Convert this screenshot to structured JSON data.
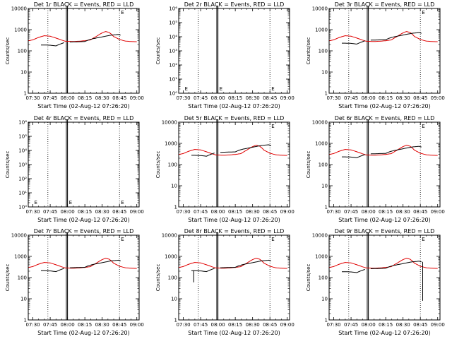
{
  "chart_data": [
    {
      "type": "line",
      "title": "Det 1r BLACK = Events, RED = LLD",
      "ylabel": "Counts/sec",
      "xlabel": "Start Time (02-Aug-12 07:26:20)",
      "yscale": "log",
      "ylim": [
        1,
        10000
      ],
      "ytick_labels": [
        "1",
        "10",
        "100",
        "1000",
        "10000"
      ],
      "x": [
        "07:30",
        "07:45",
        "08:00",
        "08:15",
        "08:30",
        "08:45",
        "09:00"
      ],
      "has_data": true,
      "black_scale": 0.45,
      "red_scale": 1.0,
      "dotted_lines": [
        "07:43",
        "08:45"
      ],
      "solid_lines": [
        "07:59",
        "08:00"
      ],
      "marker_label": "E",
      "markers": [
        "08:45"
      ],
      "black_spike": null,
      "black_dip": null
    },
    {
      "type": "line",
      "title": "Det 2r BLACK = Events, RED = LLD",
      "ylabel": "Counts/sec",
      "xlabel": "Start Time (02-Aug-12 07:26:20)",
      "yscale": "log",
      "ylim": [
        1,
        1000000
      ],
      "ytick_labels": [
        "10⁰",
        "10¹",
        "10²",
        "10³",
        "10⁴",
        "10⁵",
        "10⁶"
      ],
      "x": [
        "07:30",
        "07:45",
        "08:00",
        "08:15",
        "08:30",
        "08:45",
        "09:00"
      ],
      "has_data": false,
      "dotted_lines": [
        "07:43",
        "08:45"
      ],
      "solid_lines": [
        "07:59",
        "08:00"
      ],
      "marker_label": "E",
      "markers": [
        "07:30",
        "08:00",
        "08:45"
      ]
    },
    {
      "type": "line",
      "title": "Det 3r BLACK = Events, RED = LLD",
      "ylabel": "Counts/sec",
      "xlabel": "Start Time (02-Aug-12 07:26:20)",
      "yscale": "log",
      "ylim": [
        1,
        10000
      ],
      "ytick_labels": [
        "1",
        "10",
        "100",
        "1000",
        "10000"
      ],
      "x": [
        "07:30",
        "07:45",
        "08:00",
        "08:15",
        "08:30",
        "08:45",
        "09:00"
      ],
      "has_data": true,
      "black_scale": 0.55,
      "red_scale": 1.0,
      "dotted_lines": [
        "07:43",
        "08:45"
      ],
      "solid_lines": [
        "07:59",
        "08:00"
      ],
      "marker_label": "E",
      "markers": [
        "08:45"
      ],
      "black_spike": null,
      "black_dip": null
    },
    {
      "type": "line",
      "title": "Det 4r BLACK = Events, RED = LLD",
      "ylabel": "Counts/sec",
      "xlabel": "Start Time (02-Aug-12 07:26:20)",
      "yscale": "log",
      "ylim": [
        1,
        1000000
      ],
      "ytick_labels": [
        "10⁰",
        "10¹",
        "10²",
        "10³",
        "10⁴",
        "10⁵",
        "10⁶"
      ],
      "x": [
        "07:30",
        "07:45",
        "08:00",
        "08:15",
        "08:30",
        "08:45",
        "09:00"
      ],
      "has_data": false,
      "dotted_lines": [
        "07:43",
        "08:45"
      ],
      "solid_lines": [
        "07:59",
        "08:00"
      ],
      "marker_label": "E",
      "markers": [
        "07:30",
        "08:00",
        "08:45"
      ]
    },
    {
      "type": "line",
      "title": "Det 5r BLACK = Events, RED = LLD",
      "ylabel": "Counts/sec",
      "xlabel": "Start Time (02-Aug-12 07:26:20)",
      "yscale": "log",
      "ylim": [
        1,
        10000
      ],
      "ytick_labels": [
        "1",
        "10",
        "100",
        "1000",
        "10000"
      ],
      "x": [
        "07:30",
        "07:45",
        "08:00",
        "08:15",
        "08:30",
        "08:45",
        "09:00"
      ],
      "has_data": true,
      "black_scale": 0.65,
      "red_scale": 1.0,
      "dotted_lines": [
        "07:43",
        "08:45"
      ],
      "solid_lines": [
        "07:59",
        "08:00"
      ],
      "marker_label": "E",
      "markers": [
        "08:45"
      ],
      "black_spike": null,
      "black_dip": null
    },
    {
      "type": "line",
      "title": "Det 6r BLACK = Events, RED = LLD",
      "ylabel": "Counts/sec",
      "xlabel": "Start Time (02-Aug-12 07:26:20)",
      "yscale": "log",
      "ylim": [
        1,
        10000
      ],
      "ytick_labels": [
        "1",
        "10",
        "100",
        "1000",
        "10000"
      ],
      "x": [
        "07:30",
        "07:45",
        "08:00",
        "08:15",
        "08:30",
        "08:45",
        "09:00"
      ],
      "has_data": true,
      "black_scale": 0.55,
      "red_scale": 1.0,
      "dotted_lines": [
        "07:43",
        "08:45"
      ],
      "solid_lines": [
        "07:59",
        "08:00"
      ],
      "marker_label": "E",
      "markers": [
        "08:45"
      ],
      "black_spike": null,
      "black_dip": null
    },
    {
      "type": "line",
      "title": "Det 7r BLACK = Events, RED = LLD",
      "ylabel": "Counts/sec",
      "xlabel": "Start Time (02-Aug-12 07:26:20)",
      "yscale": "log",
      "ylim": [
        1,
        10000
      ],
      "ytick_labels": [
        "1",
        "10",
        "100",
        "1000",
        "10000"
      ],
      "x": [
        "07:30",
        "07:45",
        "08:00",
        "08:15",
        "08:30",
        "08:45",
        "09:00"
      ],
      "has_data": true,
      "black_scale": 0.5,
      "red_scale": 1.0,
      "dotted_lines": [
        "07:43",
        "08:45"
      ],
      "solid_lines": [
        "07:59",
        "08:00"
      ],
      "marker_label": "E",
      "markers": [
        "08:45"
      ],
      "black_spike": null,
      "black_dip": null
    },
    {
      "type": "line",
      "title": "Det 8r BLACK = Events, RED = LLD",
      "ylabel": "Counts/sec",
      "xlabel": "Start Time (02-Aug-12 07:26:20)",
      "yscale": "log",
      "ylim": [
        1,
        10000
      ],
      "ytick_labels": [
        "1",
        "10",
        "100",
        "1000",
        "10000"
      ],
      "x": [
        "07:30",
        "07:45",
        "08:00",
        "08:15",
        "08:30",
        "08:45",
        "09:00"
      ],
      "has_data": true,
      "black_scale": 0.5,
      "red_scale": 1.0,
      "dotted_lines": [
        "07:43",
        "08:45"
      ],
      "solid_lines": [
        "07:59",
        "08:00"
      ],
      "marker_label": "E",
      "markers": [
        "08:45"
      ],
      "black_spike": null,
      "black_dip": {
        "at": "07:39",
        "min": 60
      }
    },
    {
      "type": "line",
      "title": "Det 9r BLACK = Events, RED = LLD",
      "ylabel": "Counts/sec",
      "xlabel": "Start Time (02-Aug-12 07:26:20)",
      "yscale": "log",
      "ylim": [
        1,
        10000
      ],
      "ytick_labels": [
        "1",
        "10",
        "100",
        "1000",
        "10000"
      ],
      "x": [
        "07:30",
        "07:45",
        "08:00",
        "08:15",
        "08:30",
        "08:45",
        "09:00"
      ],
      "has_data": true,
      "black_scale": 0.45,
      "red_scale": 1.0,
      "dotted_lines": [
        "07:43",
        "08:45"
      ],
      "solid_lines": [
        "07:59",
        "08:00"
      ],
      "marker_label": "E",
      "markers": [
        "08:45"
      ],
      "black_spike": null,
      "black_dip": {
        "at": "08:47",
        "min": 8
      }
    }
  ],
  "colors": {
    "events": "#000000",
    "lld": "#e00000",
    "axes": "#000000"
  },
  "lld_profile": {
    "t": [
      "07:26",
      "07:30",
      "07:35",
      "07:40",
      "07:45",
      "07:50",
      "07:55",
      "07:58",
      "08:02",
      "08:05",
      "08:10",
      "08:15",
      "08:20",
      "08:25",
      "08:30",
      "08:33",
      "08:36",
      "08:40",
      "08:45",
      "08:50",
      "08:55",
      "09:00"
    ],
    "v": [
      300,
      330,
      430,
      520,
      490,
      400,
      320,
      285,
      280,
      275,
      285,
      300,
      330,
      480,
      700,
      820,
      740,
      470,
      340,
      290,
      275,
      270
    ]
  },
  "events_profile": {
    "t": [
      "07:37",
      "07:40",
      "07:45",
      "07:50",
      "07:57",
      "08:02",
      "08:10",
      "08:15",
      "08:18",
      "08:22",
      "08:28",
      "08:34",
      "08:38",
      "08:44",
      "08:46"
    ],
    "v": [
      420,
      420,
      410,
      380,
      540,
      580,
      600,
      610,
      720,
      830,
      960,
      1120,
      1230,
      1320,
      1220
    ]
  }
}
